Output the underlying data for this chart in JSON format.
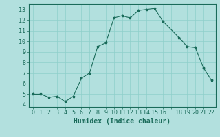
{
  "x": [
    0,
    1,
    2,
    3,
    4,
    5,
    6,
    7,
    8,
    9,
    10,
    11,
    12,
    13,
    14,
    15,
    16,
    18,
    19,
    20,
    21,
    22
  ],
  "y": [
    5,
    5,
    4.7,
    4.8,
    4.3,
    4.8,
    6.5,
    7.0,
    9.5,
    9.85,
    12.2,
    12.4,
    12.2,
    12.9,
    13.0,
    13.1,
    11.9,
    10.35,
    9.5,
    9.4,
    7.5,
    6.3
  ],
  "xlim": [
    -0.5,
    22.5
  ],
  "ylim": [
    3.8,
    13.5
  ],
  "yticks": [
    4,
    5,
    6,
    7,
    8,
    9,
    10,
    11,
    12,
    13
  ],
  "xtick_positions": [
    0,
    1,
    2,
    3,
    4,
    5,
    6,
    7,
    8,
    9,
    10,
    11,
    12,
    13,
    14,
    15,
    16,
    17,
    18,
    19,
    20,
    21,
    22
  ],
  "xtick_labels": [
    "0",
    "1",
    "2",
    "3",
    "4",
    "5",
    "6",
    "7",
    "8",
    "9",
    "10",
    "11",
    "12",
    "13",
    "14",
    "15",
    "16",
    "",
    "18",
    "19",
    "20",
    "21",
    "22"
  ],
  "xlabel": "Humidex (Indice chaleur)",
  "line_color": "#1a6b5a",
  "marker": "*",
  "bg_color": "#b2e0de",
  "grid_color": "#8ecfca",
  "tick_fontsize": 6.0,
  "xlabel_fontsize": 7.0
}
